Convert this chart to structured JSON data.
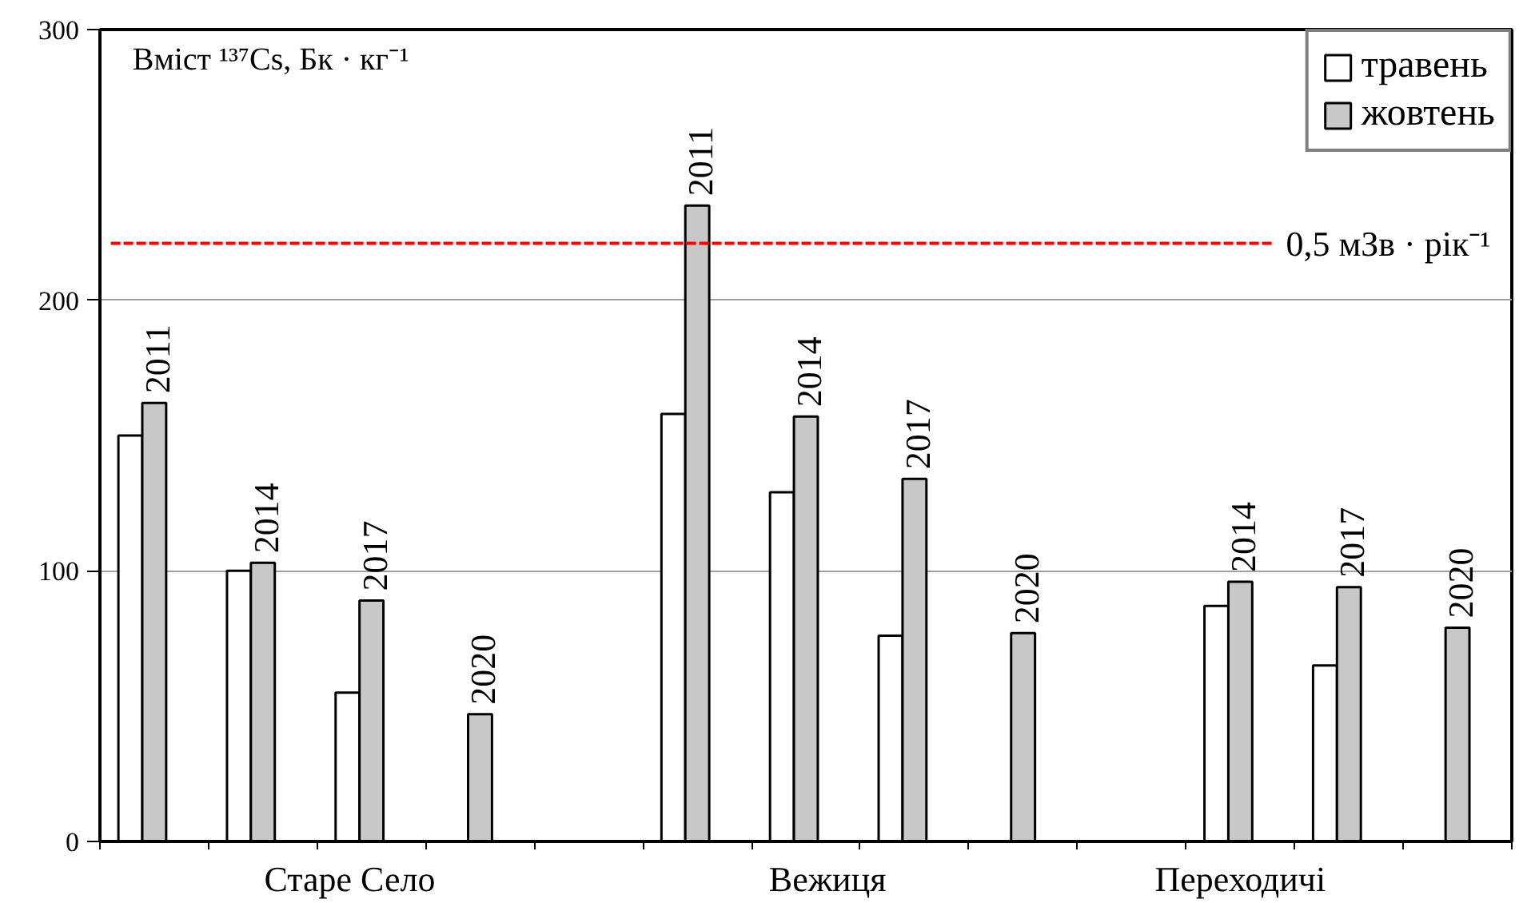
{
  "chart_data": {
    "type": "bar",
    "ylabel": "Вміст ¹³⁷Cs, Бк · кг⁻¹",
    "categories": [
      "2011",
      "2014",
      "2017",
      "2020",
      null,
      "2011",
      "2014",
      "2017",
      "2020",
      null,
      "2014",
      "2017",
      "2020"
    ],
    "series": [
      {
        "name": "травень",
        "color": "#ffffff",
        "values": [
          150,
          100,
          55,
          null,
          null,
          158,
          129,
          76,
          null,
          null,
          87,
          65,
          null
        ]
      },
      {
        "name": "жовтень",
        "color": "#c8c8c8",
        "values": [
          162,
          103,
          89,
          47,
          null,
          235,
          157,
          134,
          77,
          null,
          96,
          94,
          79
        ]
      }
    ],
    "ylim": [
      0,
      300
    ],
    "yticks": [
      0,
      100,
      200,
      300
    ],
    "grid": "y",
    "legend": "top right",
    "ref_lines": [
      {
        "axis": "y",
        "value": 221,
        "label": "0,5 мЗв · рік⁻¹",
        "color": "#ff0000",
        "line_style": "dashed"
      }
    ],
    "annotations": [
      "Старе Село",
      "Вежиця",
      "Переходичі"
    ]
  }
}
